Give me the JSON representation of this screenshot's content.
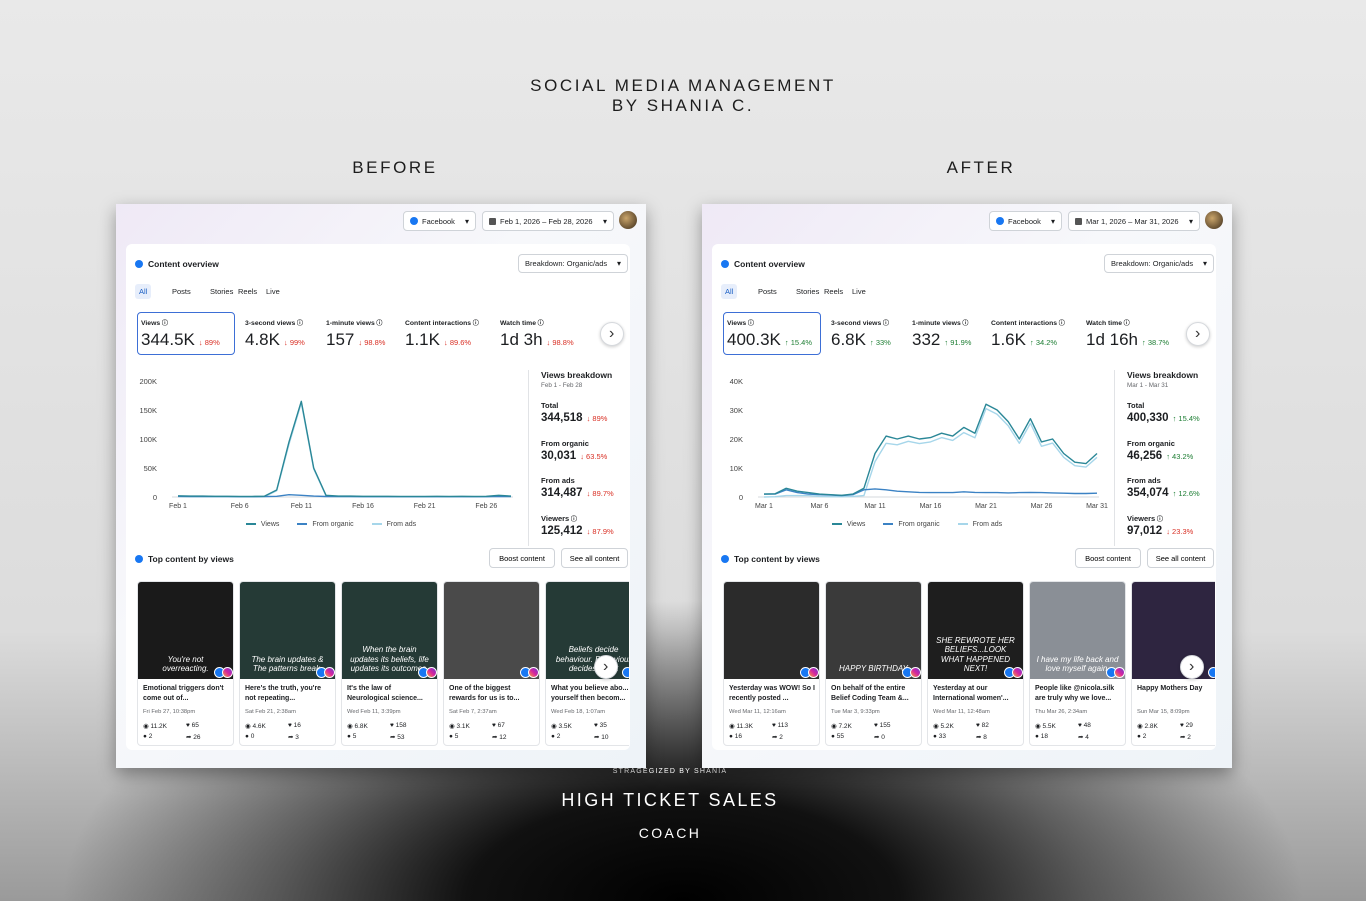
{
  "header": {
    "title_line1": "SOCIAL MEDIA MANAGEMENT",
    "title_line2": "BY SHANIA C."
  },
  "panels": [
    {
      "label": "BEFORE",
      "platform": "Facebook",
      "date_range": "Feb 1, 2026 – Feb 28, 2026",
      "section_title": "Content overview",
      "breakdown_selector": "Breakdown: Organic/ads",
      "tabs": [
        "All",
        "Posts",
        "Stories",
        "Reels",
        "Live"
      ],
      "metrics": [
        {
          "name": "Views",
          "value": "344.5K",
          "change": "↓ 89%"
        },
        {
          "name": "3-second views",
          "value": "4.8K",
          "change": "↓ 99%"
        },
        {
          "name": "1-minute views",
          "value": "157",
          "change": "↓ 98.8%"
        },
        {
          "name": "Content interactions",
          "value": "1.1K",
          "change": "↓ 89.6%"
        },
        {
          "name": "Watch time",
          "value": "1d 3h",
          "change": "↓ 98.8%"
        }
      ],
      "chart": {
        "type": "line",
        "categories": [
          "Feb 1",
          null,
          null,
          null,
          null,
          "Feb 6",
          null,
          null,
          null,
          null,
          "Feb 11",
          null,
          null,
          null,
          null,
          "Feb 16",
          null,
          null,
          null,
          null,
          "Feb 21",
          null,
          null,
          null,
          null,
          "Feb 26",
          null,
          null
        ],
        "series": [
          {
            "name": "Views",
            "color": "#2a8797",
            "values": [
              2000,
              1500,
              1500,
              1200,
              1200,
              1000,
              1000,
              1200,
              12000,
              95000,
              165000,
              50000,
              3000,
              1500,
              1500,
              1200,
              1200,
              1200,
              1000,
              1000,
              1000,
              1200,
              1000,
              1200,
              1000,
              1200,
              3000,
              1500
            ]
          },
          {
            "name": "From organic",
            "color": "#3b82c4",
            "values": [
              1000,
              800,
              800,
              700,
              700,
              600,
              600,
              700,
              1200,
              4000,
              3000,
              1500,
              800,
              700,
              700,
              600,
              600,
              600,
              500,
              500,
              500,
              600,
              500,
              600,
              500,
              600,
              1000,
              700
            ]
          },
          {
            "name": "From ads",
            "color": "#a6d6ea",
            "values": [
              1000,
              700,
              700,
              500,
              500,
              400,
              400,
              500,
              10800,
              91000,
              162000,
              48500,
              2200,
              800,
              800,
              600,
              600,
              600,
              500,
              500,
              500,
              600,
              500,
              600,
              500,
              600,
              2000,
              800
            ]
          }
        ],
        "ylim": [
          0,
          200000
        ],
        "yticks": [
          0,
          {
            "value": 50000,
            "label": "50K"
          },
          {
            "value": 100000,
            "label": "100K"
          },
          {
            "value": 150000,
            "label": "150K"
          },
          {
            "value": 200000,
            "label": "200K"
          }
        ]
      },
      "views_breakdown": {
        "title": "Views breakdown",
        "range": "Feb 1 - Feb 28",
        "items": [
          {
            "label": "Total",
            "value": "344,518",
            "change": "↓ 89%"
          },
          {
            "label": "From organic",
            "value": "30,031",
            "change": "↓ 63.5%"
          },
          {
            "label": "From ads",
            "value": "314,487",
            "change": "↓ 89.7%"
          },
          {
            "label": "Viewers",
            "value": "125,412",
            "change": "↓ 87.9%"
          }
        ]
      },
      "top_content_title": "Top content by views",
      "buttons": [
        "Boost content",
        "See all content"
      ],
      "posts": [
        {
          "thumb_text": "You're not overreacting.",
          "thumb_color": "#1a1a1a",
          "caption": "Emotional triggers don't come out of...",
          "date": "Fri Feb 27, 10:38pm",
          "reach": "11.2K",
          "likes": "65",
          "comments": "2",
          "shares": "26"
        },
        {
          "thumb_text": "The brain updates & The patterns break.",
          "thumb_color": "#253a36",
          "caption": "Here's the truth, you're not repeating...",
          "date": "Sat Feb 21, 2:38am",
          "reach": "4.6K",
          "likes": "16",
          "comments": "0",
          "shares": "3"
        },
        {
          "thumb_text": "When the brain updates its beliefs, life updates its outcomes.",
          "thumb_color": "#253a36",
          "caption": "It's the law of Neurological science...",
          "date": "Wed Feb 11, 3:39pm",
          "reach": "6.8K",
          "likes": "158",
          "comments": "5",
          "shares": "53"
        },
        {
          "thumb_text": "",
          "thumb_color": "#4a4a4a",
          "caption": "One of the biggest rewards for us is to...",
          "date": "Sat Feb 7, 2:37am",
          "reach": "3.1K",
          "likes": "67",
          "comments": "5",
          "shares": "12"
        },
        {
          "thumb_text": "Beliefs decide behaviour. Behaviour decides result",
          "thumb_color": "#253a36",
          "caption": "What you believe abo... yourself then becom...",
          "date": "Wed Feb 18, 1:07am",
          "reach": "3.5K",
          "likes": "35",
          "comments": "2",
          "shares": "10"
        }
      ]
    },
    {
      "label": "AFTER",
      "platform": "Facebook",
      "date_range": "Mar 1, 2026 – Mar 31, 2026",
      "section_title": "Content overview",
      "breakdown_selector": "Breakdown: Organic/ads",
      "tabs": [
        "All",
        "Posts",
        "Stories",
        "Reels",
        "Live"
      ],
      "metrics": [
        {
          "name": "Views",
          "value": "400.3K",
          "change": "↑ 15.4%"
        },
        {
          "name": "3-second views",
          "value": "6.8K",
          "change": "↑ 33%"
        },
        {
          "name": "1-minute views",
          "value": "332",
          "change": "↑ 91.9%"
        },
        {
          "name": "Content interactions",
          "value": "1.6K",
          "change": "↑ 34.2%"
        },
        {
          "name": "Watch time",
          "value": "1d 16h",
          "change": "↑ 38.7%"
        }
      ],
      "chart": {
        "type": "line",
        "categories": [
          "Mar 1",
          null,
          null,
          null,
          null,
          "Mar 6",
          null,
          null,
          null,
          null,
          "Mar 11",
          null,
          null,
          null,
          null,
          "Mar 16",
          null,
          null,
          null,
          null,
          "Mar 21",
          null,
          null,
          null,
          null,
          "Mar 26",
          null,
          null,
          null,
          null,
          "Mar 31"
        ],
        "series": [
          {
            "name": "Views",
            "color": "#2a8797",
            "values": [
              1000,
              1100,
              3000,
              2000,
              1500,
              1000,
              800,
              600,
              1000,
              3000,
              15000,
              21000,
              20000,
              21000,
              20000,
              20500,
              22000,
              21000,
              24000,
              22000,
              32000,
              30000,
              26000,
              20000,
              27000,
              19000,
              20000,
              15000,
              12000,
              11500,
              15000
            ]
          },
          {
            "name": "From organic",
            "color": "#3b82c4",
            "values": [
              1000,
              1000,
              2500,
              1500,
              1000,
              800,
              700,
              500,
              800,
              2500,
              2800,
              2500,
              2000,
              1800,
              1600,
              1500,
              1500,
              1500,
              1800,
              1600,
              1500,
              1500,
              1400,
              1500,
              1600,
              1500,
              1400,
              1300,
              1200,
              1200,
              1300
            ]
          },
          {
            "name": "From ads",
            "color": "#a6d6ea",
            "values": [
              0,
              100,
              500,
              500,
              500,
              200,
              100,
              100,
              200,
              500,
              12200,
              18500,
              18000,
              19200,
              18400,
              19000,
              20500,
              19500,
              22200,
              20400,
              30500,
              28500,
              24600,
              18500,
              25400,
              17500,
              18600,
              13700,
              10800,
              10300,
              13700
            ]
          }
        ],
        "ylim": [
          0,
          40000
        ],
        "yticks": [
          0,
          {
            "value": 10000,
            "label": "10K"
          },
          {
            "value": 20000,
            "label": "20K"
          },
          {
            "value": 30000,
            "label": "30K"
          },
          {
            "value": 40000,
            "label": "40K"
          }
        ]
      },
      "views_breakdown": {
        "title": "Views breakdown",
        "range": "Mar 1 - Mar 31",
        "items": [
          {
            "label": "Total",
            "value": "400,330",
            "change": "↑ 15.4%"
          },
          {
            "label": "From organic",
            "value": "46,256",
            "change": "↑ 43.2%"
          },
          {
            "label": "From ads",
            "value": "354,074",
            "change": "↑ 12.6%"
          },
          {
            "label": "Viewers",
            "value": "97,012",
            "change": "↓ 23.3%"
          }
        ]
      },
      "top_content_title": "Top content by views",
      "buttons": [
        "Boost content",
        "See all content"
      ],
      "posts": [
        {
          "thumb_text": "",
          "thumb_color": "#2b2b2b",
          "caption": "Yesterday was WOW! So I recently posted ...",
          "date": "Wed Mar 11, 12:16am",
          "reach": "11.3K",
          "likes": "113",
          "comments": "16",
          "shares": "2"
        },
        {
          "thumb_text": "HAPPY BIRTHDAY",
          "thumb_color": "#3a3a3a",
          "caption": "On behalf of the entire Belief Coding Team &...",
          "date": "Tue Mar 3, 9:33pm",
          "reach": "7.2K",
          "likes": "155",
          "comments": "55",
          "shares": "0"
        },
        {
          "thumb_text": "SHE REWROTE HER BELIEFS...LOOK WHAT HAPPENED NEXT!",
          "thumb_color": "#1e1e1e",
          "caption": "Yesterday at our International women'...",
          "date": "Wed Mar 11, 12:48am",
          "reach": "5.2K",
          "likes": "82",
          "comments": "33",
          "shares": "8"
        },
        {
          "thumb_text": "I have my life back and love myself again.",
          "thumb_color": "#8a8f96",
          "caption": "People like @nicola.silk are truly why we love...",
          "date": "Thu Mar 26, 2:34am",
          "reach": "5.5K",
          "likes": "48",
          "comments": "18",
          "shares": "4"
        },
        {
          "thumb_text": "",
          "thumb_color": "#2e2540",
          "caption": "Happy Mothers Day",
          "date": "Sun Mar 15, 8:09pm",
          "reach": "2.8K",
          "likes": "29",
          "comments": "2",
          "shares": "2"
        }
      ]
    }
  ],
  "footer": {
    "credit": "STRAGEGIZED BY SHANIA",
    "title": "HIGH TICKET SALES",
    "subtitle": "COACH"
  }
}
